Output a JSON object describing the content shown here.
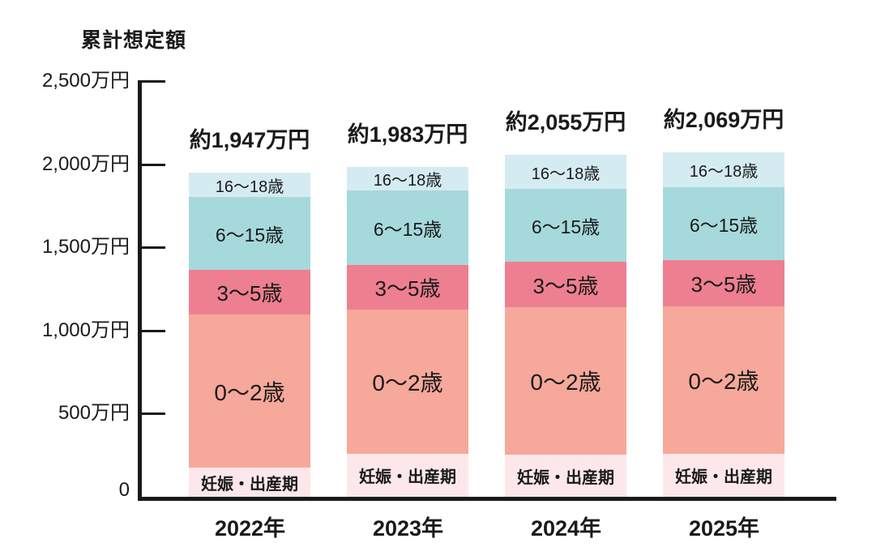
{
  "chart_data": {
    "type": "bar",
    "stacked": true,
    "title": "累計想定額",
    "unit": "万円",
    "categories": [
      "2022年",
      "2023年",
      "2024年",
      "2025年"
    ],
    "bar_total_labels": [
      "約1,947万円",
      "約1,983万円",
      "約2,055万円",
      "約2,069万円"
    ],
    "bar_totals": [
      1947,
      1983,
      2055,
      2069
    ],
    "series": [
      {
        "name": "妊娠・出産期",
        "color": "#fce8ea",
        "values": [
          175,
          258,
          252,
          256
        ]
      },
      {
        "name": "0〜2歳",
        "color": "#f6a89a",
        "values": [
          920,
          866,
          888,
          888
        ]
      },
      {
        "name": "3〜5歳",
        "color": "#ed7f90",
        "values": [
          268,
          268,
          272,
          277
        ]
      },
      {
        "name": "6〜15歳",
        "color": "#a6d9dc",
        "values": [
          442,
          449,
          440,
          441
        ]
      },
      {
        "name": "16〜18歳",
        "color": "#d5ebf2",
        "values": [
          142,
          142,
          203,
          207
        ]
      }
    ],
    "y_axis": {
      "max": 2500,
      "ticks": [
        {
          "value": 0,
          "label": "0"
        },
        {
          "value": 500,
          "label": "500万円"
        },
        {
          "value": 1000,
          "label": "1,000万円"
        },
        {
          "value": 1500,
          "label": "1,500万円"
        },
        {
          "value": 2000,
          "label": "2,000万円"
        },
        {
          "value": 2500,
          "label": "2,500万円"
        }
      ]
    },
    "colors": {
      "axis": "#1a1a1a",
      "text": "#1a1a1a",
      "background": "#ffffff"
    },
    "legend": "labels-inside-segments",
    "grid": false
  }
}
